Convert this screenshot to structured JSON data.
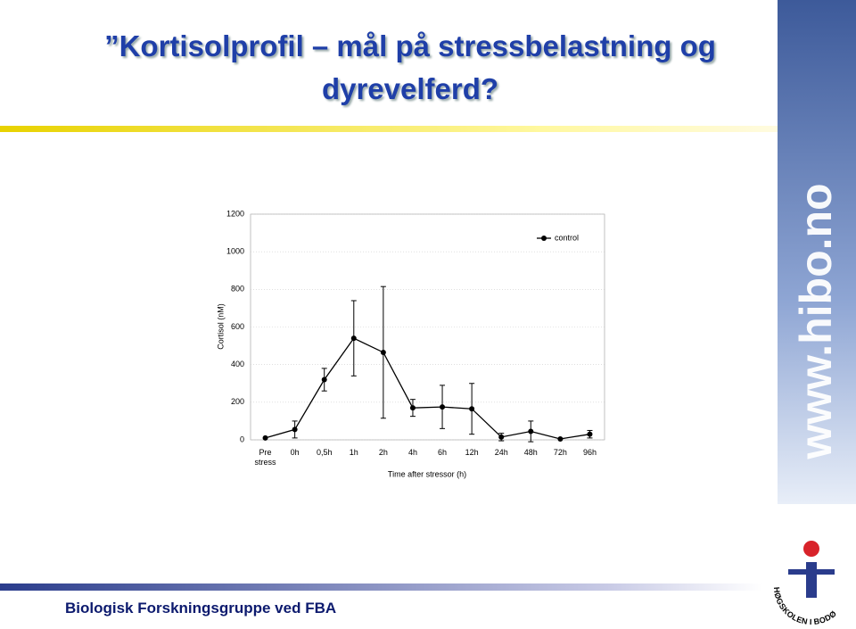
{
  "slide": {
    "title": "”Kortisolprofil – mål på stressbelastning og dyrevelferd?",
    "footer": "Biologisk Forskningsgruppe ved FBA",
    "side_text": "www.hibo.no",
    "logo_text": "HØGSKOLEN I BODØ"
  },
  "chart_data": {
    "type": "line",
    "ylabel": "Cortisol (nM)",
    "xlabel": "Time after stressor (h)",
    "categories": [
      "Pre stress",
      "0h",
      "0,5h",
      "1h",
      "2h",
      "4h",
      "6h",
      "12h",
      "24h",
      "48h",
      "72h",
      "96h"
    ],
    "series": [
      {
        "name": "control",
        "color": "#000000",
        "values": [
          10,
          55,
          320,
          540,
          465,
          170,
          175,
          165,
          15,
          45,
          5,
          30
        ],
        "errors": [
          0,
          45,
          60,
          200,
          350,
          45,
          115,
          135,
          20,
          55,
          0,
          20
        ]
      }
    ],
    "ylim": [
      0,
      1200
    ],
    "yticks": [
      0,
      200,
      400,
      600,
      800,
      1000,
      1200
    ],
    "grid": true,
    "legend": "upper right"
  }
}
